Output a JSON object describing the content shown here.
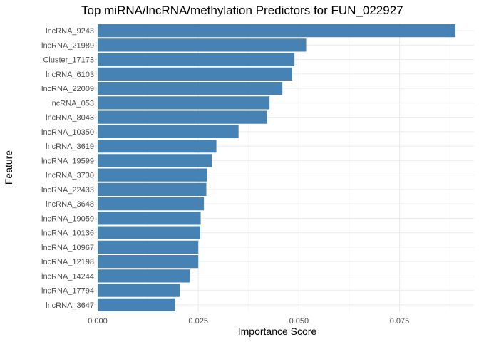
{
  "chart_data": {
    "type": "bar",
    "orientation": "horizontal",
    "title": "Top miRNA/lncRNA/methylation Predictors for FUN_022927",
    "xlabel": "Importance Score",
    "ylabel": "Feature",
    "bar_color": "#4682b4",
    "xlim": [
      0,
      0.0935
    ],
    "x_ticks": [
      0,
      0.025,
      0.05,
      0.075
    ],
    "x_tick_labels": [
      "0.000",
      "0.025",
      "0.050",
      "0.075"
    ],
    "grid": true,
    "legend": "none",
    "categories": [
      "lncRNA_9243",
      "lncRNA_21989",
      "Cluster_17173",
      "lncRNA_6103",
      "lncRNA_22009",
      "lncRNA_053",
      "lncRNA_8043",
      "lncRNA_10350",
      "lncRNA_3619",
      "lncRNA_19599",
      "lncRNA_3730",
      "lncRNA_22433",
      "lncRNA_3648",
      "lncRNA_19059",
      "lncRNA_10136",
      "lncRNA_10967",
      "lncRNA_12198",
      "lncRNA_14244",
      "lncRNA_17794",
      "lncRNA_3647"
    ],
    "values": [
      0.0889,
      0.0518,
      0.0489,
      0.0483,
      0.0459,
      0.0427,
      0.0421,
      0.035,
      0.0295,
      0.0284,
      0.0272,
      0.027,
      0.0264,
      0.0256,
      0.0255,
      0.025,
      0.025,
      0.0229,
      0.0204,
      0.0193
    ]
  }
}
